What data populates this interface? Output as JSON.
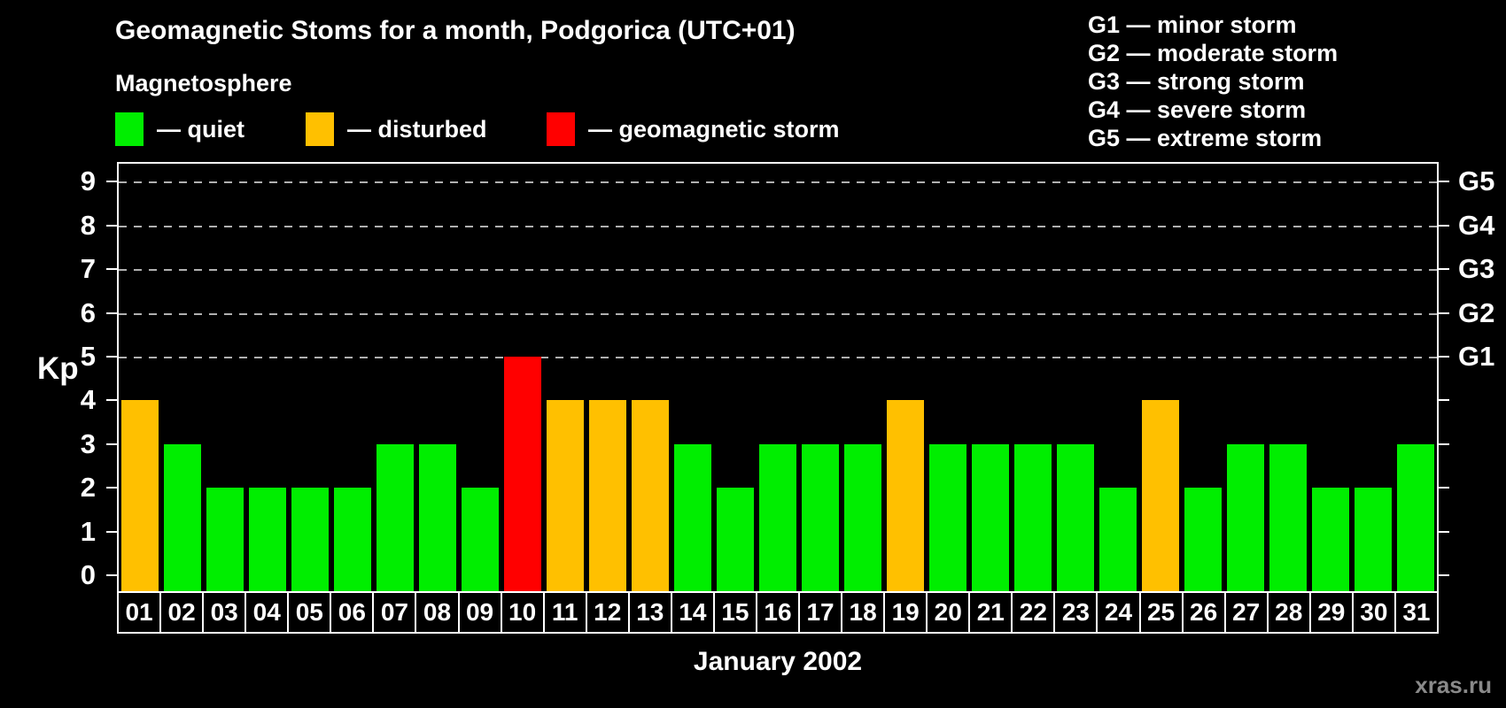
{
  "title": "Geomagnetic Stoms for a month, Podgorica (UTC+01)",
  "watermark": "xras.ru",
  "magnetosphere_legend": {
    "heading": "Magnetosphere",
    "items": [
      {
        "label": "— quiet",
        "color": "#00ee00"
      },
      {
        "label": "— disturbed",
        "color": "#ffc000"
      },
      {
        "label": "— geomagnetic storm",
        "color": "#ff0000"
      }
    ]
  },
  "storm_scale_legend": [
    "G1 — minor storm",
    "G2 — moderate storm",
    "G3 — strong storm",
    "G4 — severe storm",
    "G5 — extreme storm"
  ],
  "chart_data": {
    "type": "bar",
    "title": "Geomagnetic Stoms for a month, Podgorica (UTC+01)",
    "xlabel": "January 2002",
    "ylabel": "Kp",
    "ylim": [
      0,
      9
    ],
    "grid": "dashed horizontal lines at Kp 5-9 only",
    "legend_position": "top-left and top-right",
    "background": "#000000",
    "categories": [
      "01",
      "02",
      "03",
      "04",
      "05",
      "06",
      "07",
      "08",
      "09",
      "10",
      "11",
      "12",
      "13",
      "14",
      "15",
      "16",
      "17",
      "18",
      "19",
      "20",
      "21",
      "22",
      "23",
      "24",
      "25",
      "26",
      "27",
      "28",
      "29",
      "30",
      "31"
    ],
    "values": [
      4,
      3,
      2,
      2,
      2,
      2,
      3,
      3,
      2,
      5,
      4,
      4,
      4,
      3,
      2,
      3,
      3,
      3,
      4,
      3,
      3,
      3,
      3,
      2,
      4,
      2,
      3,
      3,
      2,
      2,
      3
    ],
    "statuses": [
      "disturbed",
      "quiet",
      "quiet",
      "quiet",
      "quiet",
      "quiet",
      "quiet",
      "quiet",
      "quiet",
      "storm",
      "disturbed",
      "disturbed",
      "disturbed",
      "quiet",
      "quiet",
      "quiet",
      "quiet",
      "quiet",
      "disturbed",
      "quiet",
      "quiet",
      "quiet",
      "quiet",
      "quiet",
      "disturbed",
      "quiet",
      "quiet",
      "quiet",
      "quiet",
      "quiet",
      "quiet"
    ],
    "status_colors": {
      "quiet": "#00ee00",
      "disturbed": "#ffc000",
      "storm": "#ff0000"
    },
    "y_ticks": [
      "0",
      "1",
      "2",
      "3",
      "4",
      "5",
      "6",
      "7",
      "8",
      "9"
    ],
    "gridlines_at_kp": [
      5,
      6,
      7,
      8,
      9
    ],
    "right_axis": [
      {
        "kp": 5,
        "label": "G1"
      },
      {
        "kp": 6,
        "label": "G2"
      },
      {
        "kp": 7,
        "label": "G3"
      },
      {
        "kp": 8,
        "label": "G4"
      },
      {
        "kp": 9,
        "label": "G5"
      }
    ]
  }
}
